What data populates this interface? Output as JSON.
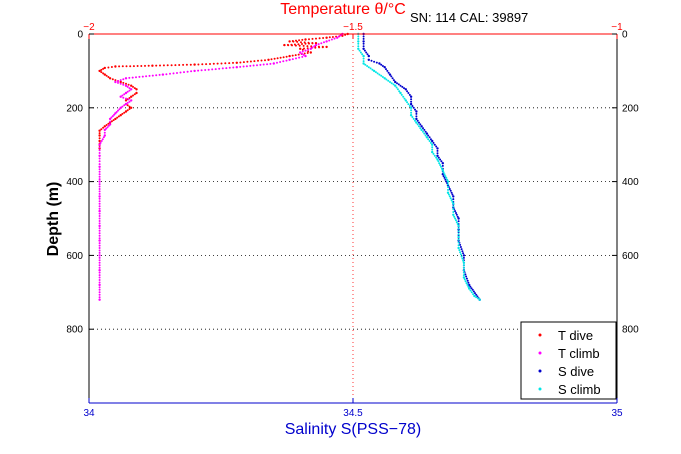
{
  "header": {
    "serial_text": "SN: 114  CAL: 39897"
  },
  "chart_data": {
    "type": "scatter",
    "title": "Temperature θ/°C",
    "xlabel": "Salinity S(PSS−78)",
    "ylabel": "Depth (m)",
    "x_bottom": {
      "label": "Salinity S(PSS−78)",
      "lim": [
        34,
        35
      ],
      "ticks": [
        "34",
        "34.5",
        "35"
      ],
      "color": "#0000cc"
    },
    "x_top": {
      "label": "Temperature θ/°C",
      "lim": [
        -2,
        -1
      ],
      "ticks": [
        "−2",
        "−1.5",
        "−1"
      ],
      "color": "#ff0000"
    },
    "y_left": {
      "label": "Depth (m)",
      "lim": [
        1000,
        0
      ],
      "ticks": [
        "0",
        "200",
        "400",
        "600",
        "800"
      ]
    },
    "y_right_ticks": [
      "0",
      "200",
      "400",
      "600",
      "800"
    ],
    "grid": "dotted at depths 200, 400, 600, 800 and at the mid x-tick",
    "legend": {
      "placement": "bottom-right",
      "entries": [
        "T dive",
        "T climb",
        "S dive",
        "S climb"
      ]
    },
    "colors": {
      "t_dive": "#ff0000",
      "t_climb": "#ff00ff",
      "s_dive": "#0000cc",
      "s_climb": "#00e6e6"
    },
    "series": [
      {
        "name": "T dive",
        "axis": "top",
        "color": "#ff0000",
        "points": [
          [
            -1.51,
            0
          ],
          [
            -1.52,
            5
          ],
          [
            -1.55,
            10
          ],
          [
            -1.59,
            15
          ],
          [
            -1.62,
            20
          ],
          [
            -1.57,
            25
          ],
          [
            -1.63,
            30
          ],
          [
            -1.55,
            35
          ],
          [
            -1.6,
            40
          ],
          [
            -1.58,
            50
          ],
          [
            -1.62,
            60
          ],
          [
            -1.66,
            70
          ],
          [
            -1.72,
            78
          ],
          [
            -1.8,
            83
          ],
          [
            -1.88,
            86
          ],
          [
            -1.95,
            88
          ],
          [
            -1.97,
            92
          ],
          [
            -1.98,
            100
          ],
          [
            -1.97,
            110
          ],
          [
            -1.96,
            120
          ],
          [
            -1.94,
            130
          ],
          [
            -1.92,
            140
          ],
          [
            -1.91,
            150
          ],
          [
            -1.91,
            160
          ],
          [
            -1.92,
            170
          ],
          [
            -1.93,
            180
          ],
          [
            -1.93,
            190
          ],
          [
            -1.92,
            200
          ],
          [
            -1.93,
            210
          ],
          [
            -1.94,
            220
          ],
          [
            -1.95,
            230
          ],
          [
            -1.96,
            240
          ],
          [
            -1.97,
            250
          ],
          [
            -1.98,
            262
          ],
          [
            -1.98,
            275
          ],
          [
            -1.98,
            290
          ],
          [
            -1.98,
            310
          ]
        ]
      },
      {
        "name": "T climb",
        "axis": "top",
        "color": "#ff00ff",
        "points": [
          [
            -1.52,
            0
          ],
          [
            -1.53,
            10
          ],
          [
            -1.55,
            20
          ],
          [
            -1.57,
            30
          ],
          [
            -1.58,
            40
          ],
          [
            -1.6,
            50
          ],
          [
            -1.59,
            60
          ],
          [
            -1.62,
            70
          ],
          [
            -1.65,
            80
          ],
          [
            -1.72,
            90
          ],
          [
            -1.8,
            100
          ],
          [
            -1.86,
            110
          ],
          [
            -1.93,
            120
          ],
          [
            -1.95,
            130
          ],
          [
            -1.93,
            140
          ],
          [
            -1.92,
            150
          ],
          [
            -1.93,
            160
          ],
          [
            -1.94,
            170
          ],
          [
            -1.92,
            180
          ],
          [
            -1.93,
            190
          ],
          [
            -1.94,
            200
          ],
          [
            -1.95,
            215
          ],
          [
            -1.96,
            230
          ],
          [
            -1.96,
            245
          ],
          [
            -1.97,
            260
          ],
          [
            -1.97,
            275
          ],
          [
            -1.98,
            300
          ],
          [
            -1.98,
            330
          ],
          [
            -1.98,
            360
          ],
          [
            -1.98,
            400
          ],
          [
            -1.98,
            440
          ],
          [
            -1.98,
            480
          ],
          [
            -1.98,
            520
          ],
          [
            -1.98,
            560
          ],
          [
            -1.98,
            600
          ],
          [
            -1.98,
            640
          ],
          [
            -1.98,
            680
          ],
          [
            -1.98,
            720
          ]
        ]
      },
      {
        "name": "S dive",
        "axis": "bottom",
        "color": "#0000cc",
        "points": [
          [
            34.52,
            0
          ],
          [
            34.52,
            20
          ],
          [
            34.52,
            40
          ],
          [
            34.53,
            60
          ],
          [
            34.53,
            70
          ],
          [
            34.55,
            80
          ],
          [
            34.56,
            90
          ],
          [
            34.57,
            110
          ],
          [
            34.58,
            130
          ],
          [
            34.6,
            150
          ],
          [
            34.61,
            170
          ],
          [
            34.61,
            190
          ],
          [
            34.62,
            210
          ],
          [
            34.62,
            230
          ],
          [
            34.63,
            250
          ],
          [
            34.64,
            270
          ],
          [
            34.65,
            290
          ],
          [
            34.66,
            310
          ],
          [
            34.66,
            330
          ],
          [
            34.67,
            350
          ],
          [
            34.67,
            380
          ],
          [
            34.68,
            410
          ],
          [
            34.69,
            440
          ],
          [
            34.69,
            470
          ],
          [
            34.7,
            500
          ],
          [
            34.7,
            530
          ],
          [
            34.7,
            560
          ],
          [
            34.71,
            600
          ],
          [
            34.71,
            640
          ],
          [
            34.72,
            680
          ],
          [
            34.74,
            720
          ]
        ]
      },
      {
        "name": "S climb",
        "axis": "bottom",
        "color": "#00e6e6",
        "points": [
          [
            34.51,
            0
          ],
          [
            34.51,
            20
          ],
          [
            34.51,
            40
          ],
          [
            34.52,
            60
          ],
          [
            34.52,
            80
          ],
          [
            34.54,
            100
          ],
          [
            34.56,
            120
          ],
          [
            34.58,
            140
          ],
          [
            34.59,
            160
          ],
          [
            34.6,
            180
          ],
          [
            34.61,
            200
          ],
          [
            34.61,
            220
          ],
          [
            34.62,
            240
          ],
          [
            34.63,
            260
          ],
          [
            34.64,
            280
          ],
          [
            34.65,
            300
          ],
          [
            34.65,
            320
          ],
          [
            34.66,
            340
          ],
          [
            34.67,
            370
          ],
          [
            34.68,
            400
          ],
          [
            34.68,
            430
          ],
          [
            34.69,
            460
          ],
          [
            34.69,
            490
          ],
          [
            34.7,
            520
          ],
          [
            34.7,
            550
          ],
          [
            34.7,
            580
          ],
          [
            34.71,
            620
          ],
          [
            34.71,
            660
          ],
          [
            34.72,
            690
          ],
          [
            34.73,
            710
          ],
          [
            34.74,
            720
          ]
        ]
      }
    ]
  }
}
